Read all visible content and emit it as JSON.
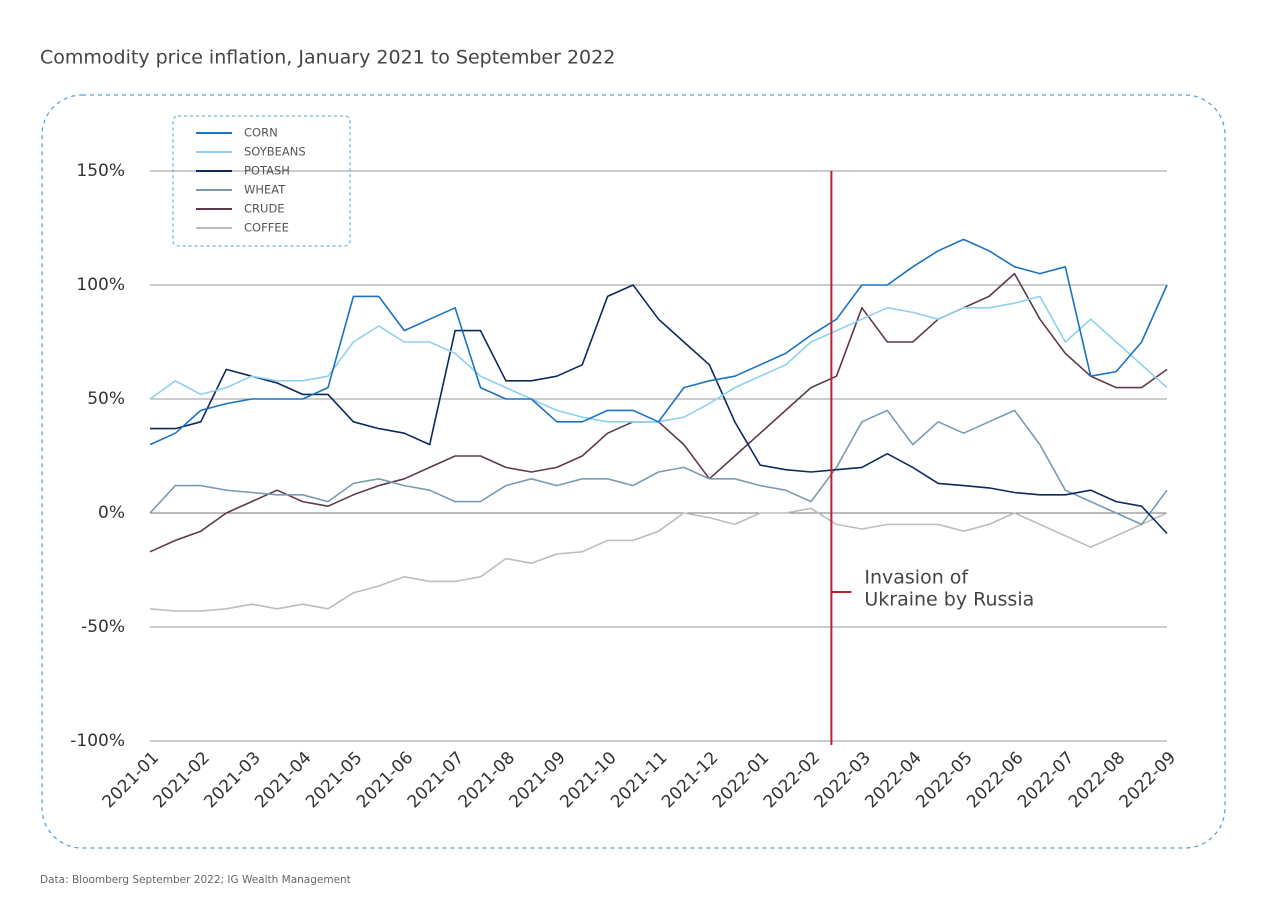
{
  "chart_data": {
    "type": "line",
    "title": "Commodity price inflation, January 2021 to September 2022",
    "source": "Data: Bloomberg September 2022; IG Wealth Management",
    "categories": [
      "2021-01",
      null,
      "2021-02",
      null,
      "2021-03",
      null,
      "2021-04",
      null,
      "2021-05",
      null,
      "2021-06",
      null,
      "2021-07",
      null,
      "2021-08",
      null,
      "2021-09",
      null,
      "2021-10",
      null,
      "2021-11",
      null,
      "2021-12",
      null,
      "2022-01",
      null,
      "2022-02",
      null,
      "2022-03",
      null,
      "2022-04",
      null,
      "2022-05",
      null,
      "2022-06",
      null,
      "2022-07",
      null,
      "2022-08",
      null,
      "2022-09"
    ],
    "ylim": [
      -100,
      150
    ],
    "yticks": [
      {
        "value": -100,
        "label": "-100%"
      },
      {
        "value": -50,
        "label": "-50%"
      },
      {
        "value": 0,
        "label": "0%"
      },
      {
        "value": 50,
        "label": "50%"
      },
      {
        "value": 100,
        "label": "100%"
      },
      {
        "value": 150,
        "label": "150%"
      }
    ],
    "grid": true,
    "legend": "top-left",
    "annotation": {
      "lines": [
        "Invasion of",
        "Ukraine by Russia"
      ],
      "position": 26.8,
      "color": "#c0202e"
    },
    "series": [
      {
        "name": "CORN",
        "color": "#1a73c4",
        "values": [
          30,
          35,
          45,
          48,
          50,
          50,
          50,
          55,
          95,
          95,
          80,
          85,
          90,
          55,
          50,
          50,
          40,
          40,
          45,
          45,
          40,
          55,
          58,
          60,
          65,
          70,
          78,
          85,
          100,
          100,
          108,
          115,
          120,
          115,
          108,
          105,
          108,
          60,
          62,
          75,
          100
        ]
      },
      {
        "name": "SOYBEANS",
        "color": "#8fd0f0",
        "values": [
          50,
          58,
          52,
          55,
          60,
          58,
          58,
          60,
          75,
          82,
          75,
          75,
          70,
          60,
          55,
          50,
          45,
          42,
          40,
          40,
          40,
          42,
          48,
          55,
          60,
          65,
          75,
          80,
          85,
          90,
          88,
          85,
          90,
          90,
          92,
          95,
          75,
          85,
          75,
          65,
          55
        ]
      },
      {
        "name": "POTASH",
        "color": "#0d2a5c",
        "values": [
          37,
          37,
          40,
          63,
          60,
          57,
          52,
          52,
          40,
          37,
          35,
          30,
          80,
          80,
          58,
          58,
          60,
          65,
          95,
          100,
          85,
          75,
          65,
          40,
          21,
          19,
          18,
          19,
          20,
          26,
          20,
          13,
          12,
          11,
          9,
          8,
          8,
          10,
          5,
          3,
          -9
        ]
      },
      {
        "name": "WHEAT",
        "color": "#7a9bb0",
        "values": [
          0,
          12,
          12,
          10,
          9,
          8,
          8,
          5,
          13,
          15,
          12,
          10,
          5,
          5,
          12,
          15,
          12,
          15,
          15,
          12,
          18,
          20,
          15,
          15,
          12,
          10,
          5,
          20,
          40,
          45,
          30,
          40,
          35,
          40,
          45,
          30,
          10,
          5,
          0,
          -5,
          10
        ]
      },
      {
        "name": "CRUDE",
        "color": "#5e3a50",
        "values": [
          -17,
          -12,
          -8,
          0,
          5,
          10,
          5,
          3,
          8,
          12,
          15,
          20,
          25,
          25,
          20,
          18,
          20,
          25,
          35,
          40,
          40,
          30,
          15,
          25,
          35,
          45,
          55,
          60,
          90,
          75,
          75,
          85,
          90,
          95,
          105,
          85,
          70,
          60,
          55,
          55,
          63
        ]
      },
      {
        "name": "COFFEE",
        "color": "#bdbdbd",
        "values": [
          -42,
          -43,
          -43,
          -42,
          -40,
          -42,
          -40,
          -42,
          -35,
          -32,
          -28,
          -30,
          -30,
          -28,
          -20,
          -22,
          -18,
          -17,
          -12,
          -12,
          -8,
          0,
          -2,
          -5,
          0,
          0,
          2,
          -5,
          -7,
          -5,
          -5,
          -5,
          -8,
          -5,
          0,
          -5,
          -10,
          -15,
          -10,
          -5,
          0
        ]
      }
    ]
  }
}
